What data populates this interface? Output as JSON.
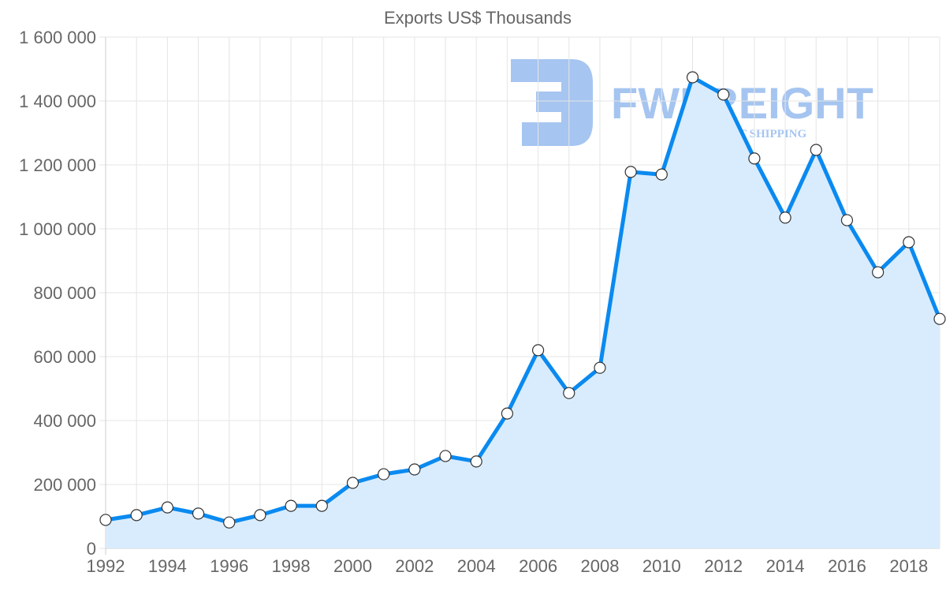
{
  "chart_data": {
    "type": "area",
    "title": "Exports US$ Thousands",
    "xlabel": "",
    "ylabel": "",
    "x": [
      1992,
      1993,
      1994,
      1995,
      1996,
      1997,
      1998,
      1999,
      2000,
      2001,
      2002,
      2003,
      2004,
      2005,
      2006,
      2007,
      2008,
      2009,
      2010,
      2011,
      2012,
      2013,
      2014,
      2015,
      2016,
      2017,
      2018,
      2019
    ],
    "series": [
      {
        "name": "Exports US$ Thousands",
        "values": [
          89000,
          104000,
          128000,
          109000,
          81000,
          104000,
          133000,
          133000,
          205000,
          232000,
          247000,
          289000,
          272000,
          422000,
          620000,
          486000,
          565000,
          1178000,
          1170000,
          1474000,
          1420000,
          1220000,
          1035000,
          1247000,
          1027000,
          864000,
          958000,
          718000
        ]
      }
    ],
    "ylim": [
      0,
      1600000
    ],
    "xlim": [
      1992,
      2019
    ],
    "y_ticks": [
      "0",
      "200 000",
      "400 000",
      "600 000",
      "800 000",
      "1 000 000",
      "1 200 000",
      "1 400 000",
      "1 600 000"
    ],
    "x_ticks": [
      "1992",
      "1994",
      "1996",
      "1998",
      "2000",
      "2002",
      "2004",
      "2006",
      "2008",
      "2010",
      "2012",
      "2014",
      "2016",
      "2018"
    ],
    "grid": true,
    "colors": {
      "line": "#0a8af0",
      "fill": "#d9ecfd",
      "grid": "#e5e5e5",
      "point": "#ffffff"
    }
  },
  "watermark": {
    "name": "FWFREIGHT",
    "tagline": "FREIGHT SHIPPING"
  }
}
